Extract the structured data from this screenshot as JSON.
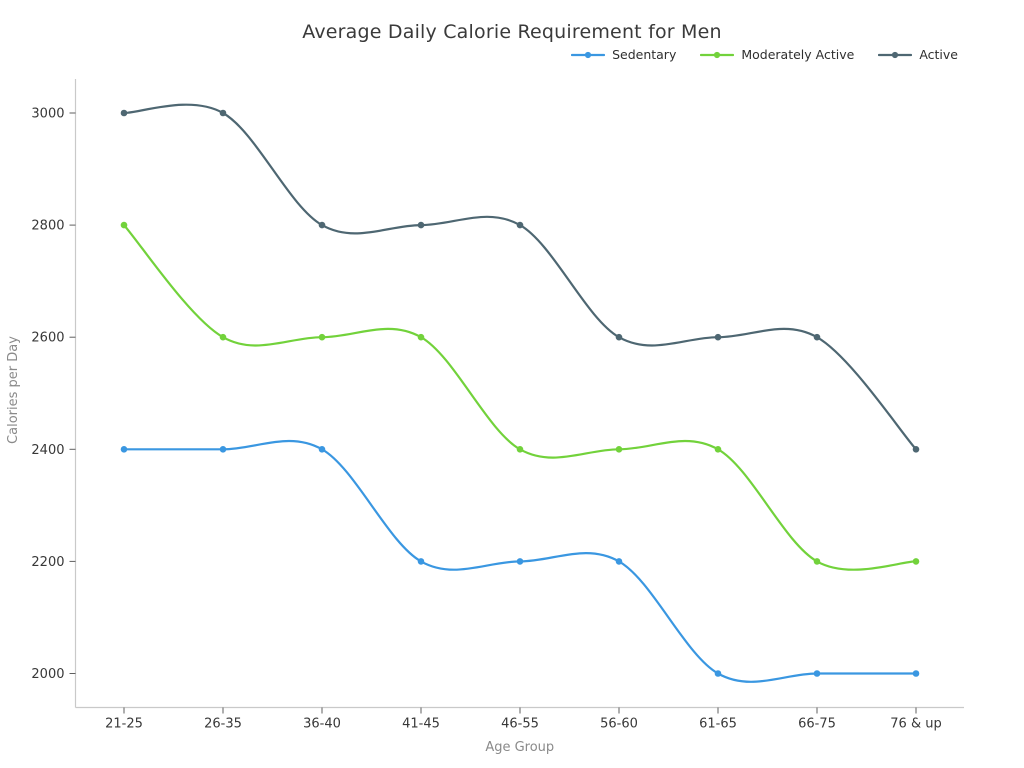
{
  "chart_data": {
    "type": "line",
    "title": "Average Daily Calorie Requirement for Men",
    "xlabel": "Age Group",
    "ylabel": "Calories per Day",
    "categories": [
      "21-25",
      "26-35",
      "36-40",
      "41-45",
      "46-55",
      "56-60",
      "61-65",
      "66-75",
      "76 & up"
    ],
    "series": [
      {
        "name": "Sedentary",
        "color": "#3a97e1",
        "values": [
          2400,
          2400,
          2400,
          2200,
          2200,
          2200,
          2000,
          2000,
          2000
        ]
      },
      {
        "name": "Moderately Active",
        "color": "#72d23b",
        "values": [
          2800,
          2600,
          2600,
          2600,
          2400,
          2400,
          2400,
          2200,
          2200
        ]
      },
      {
        "name": "Active",
        "color": "#4e6772",
        "values": [
          3000,
          3000,
          2800,
          2800,
          2800,
          2600,
          2600,
          2600,
          2400
        ]
      }
    ],
    "yticks": [
      2000,
      2200,
      2400,
      2600,
      2800,
      3000
    ],
    "ylim": [
      1940,
      3060
    ],
    "grid": false,
    "line_shape": "spline",
    "markers": true,
    "legend_position": "top-right"
  },
  "style": {
    "background": "#ffffff",
    "title_color": "#3a3a3a",
    "tick_label_color": "#383838",
    "axis_title_color": "#8a8a8a",
    "spine_color": "#c9c9c9",
    "tick_mark_color": "#5f5f5f",
    "legend_text_color": "#2f2f2f"
  }
}
